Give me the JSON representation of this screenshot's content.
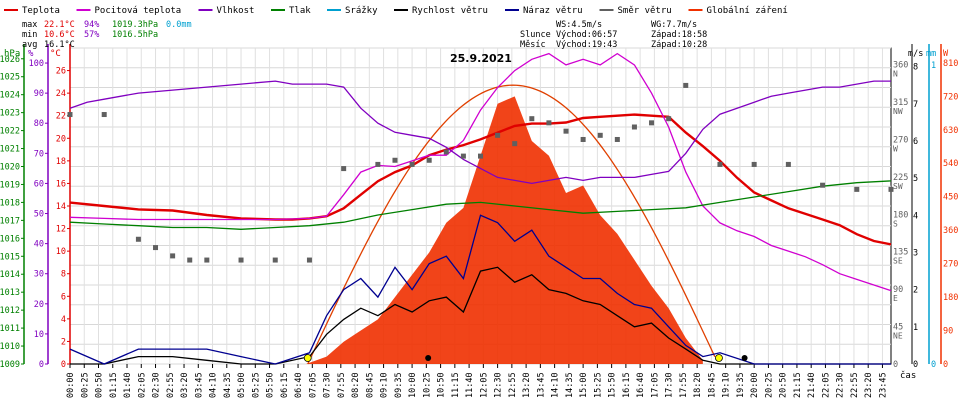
{
  "legend": [
    {
      "label": "Teplota",
      "color": "#e00000"
    },
    {
      "label": "Pocitová teplota",
      "color": "#d000d0"
    },
    {
      "label": "Vlhkost",
      "color": "#8000c0"
    },
    {
      "label": "Tlak",
      "color": "#008000"
    },
    {
      "label": "Srážky",
      "color": "#00a0d0"
    },
    {
      "label": "Rychlost větru",
      "color": "#000000"
    },
    {
      "label": "Náraz větru",
      "color": "#000090"
    },
    {
      "label": "Směr větru",
      "color": "#606060"
    },
    {
      "label": "Globální záření",
      "color": "#f03000"
    }
  ],
  "stats": {
    "max_label": "max",
    "max_temp": "22.1°C",
    "max_hum": "94%",
    "max_press": "1019.3hPa",
    "rain": "0.0mm",
    "min_label": "min",
    "min_temp": "10.6°C",
    "min_hum": "57%",
    "min_press": "1016.5hPa",
    "avg_label": "avg",
    "avg_temp": "16.1°C"
  },
  "wind_info": {
    "ws": "WS:4.5m/s",
    "wg": "WG:7.7m/s"
  },
  "sun_info": {
    "label": "Slunce",
    "rise": "Východ:06:57",
    "set": "Západ:18:58"
  },
  "moon_info": {
    "label": "Měsíc",
    "rise": "Východ:19:43",
    "set": "Západ:10:28"
  },
  "date": "25.9.2021",
  "xaxis_label": "čas",
  "axes": {
    "hpa": {
      "unit": "hPa",
      "ticks": [
        "1026",
        "1025",
        "1024",
        "1023",
        "1022",
        "1021",
        "1020",
        "1019",
        "1018",
        "1017",
        "1016",
        "1015",
        "1014",
        "1013",
        "1012",
        "1011",
        "1010",
        "1009"
      ],
      "color": "#008000"
    },
    "pct": {
      "unit": "%",
      "ticks": [
        "100",
        "90",
        "80",
        "70",
        "60",
        "50",
        "40",
        "30",
        "20",
        "10",
        "0"
      ],
      "color": "#8000c0"
    },
    "temp": {
      "unit": "°C",
      "ticks": [
        "26",
        "24",
        "22",
        "20",
        "18",
        "16",
        "14",
        "12",
        "10",
        "8",
        "6",
        "4",
        "2",
        "0"
      ],
      "color": "#e00000"
    },
    "dir": {
      "ticks": [
        "360",
        "315",
        "270",
        "225",
        "180",
        "135",
        "90",
        "45",
        "0"
      ],
      "labels": [
        "N",
        "NW",
        "W",
        "SW",
        "S",
        "SE",
        "E",
        "NE",
        ""
      ]
    },
    "ms": {
      "unit": "m/s",
      "ticks": [
        "8",
        "7",
        "6",
        "5",
        "4",
        "3",
        "2",
        "1",
        "0"
      ]
    },
    "mm": {
      "unit": "mm",
      "ticks": [
        "1",
        "0"
      ],
      "color": "#00a0d0"
    },
    "wm2": {
      "unit": "W",
      "ticks": [
        "810",
        "720",
        "630",
        "540",
        "450",
        "360",
        "270",
        "180",
        "90",
        "0"
      ],
      "color": "#f03000"
    }
  },
  "time_ticks": [
    "00:00",
    "00:25",
    "00:50",
    "01:15",
    "01:40",
    "02:05",
    "02:30",
    "02:55",
    "03:20",
    "03:45",
    "04:10",
    "04:35",
    "05:00",
    "05:25",
    "05:50",
    "06:15",
    "06:40",
    "07:05",
    "07:30",
    "07:55",
    "08:20",
    "08:45",
    "09:10",
    "09:35",
    "10:00",
    "10:25",
    "10:50",
    "11:15",
    "11:40",
    "12:05",
    "12:30",
    "12:55",
    "13:20",
    "13:45",
    "14:10",
    "14:35",
    "15:00",
    "15:25",
    "15:50",
    "16:15",
    "16:40",
    "17:05",
    "17:30",
    "17:55",
    "18:20",
    "18:45",
    "19:10",
    "19:35",
    "20:00",
    "20:25",
    "20:50",
    "21:15",
    "21:40",
    "22:05",
    "22:30",
    "22:55",
    "23:20",
    "23:45"
  ],
  "chart_data": {
    "type": "line",
    "x_unit": "hours",
    "series": [
      {
        "name": "Teplota",
        "axis": "temp",
        "color": "#e00000",
        "x": [
          0,
          1,
          2,
          3,
          4,
          5,
          6,
          6.5,
          7,
          7.5,
          8,
          8.5,
          9,
          9.5,
          10,
          10.5,
          11,
          11.5,
          12,
          12.5,
          13,
          13.5,
          14,
          14.5,
          15,
          15.5,
          16,
          16.5,
          17,
          17.5,
          18,
          18.5,
          19,
          19.5,
          20,
          20.5,
          21,
          21.5,
          22,
          22.5,
          23,
          23.5,
          24
        ],
        "y": [
          14.3,
          14,
          13.7,
          13.6,
          13.2,
          12.9,
          12.8,
          12.8,
          12.9,
          13.1,
          13.8,
          15,
          16.2,
          17,
          17.6,
          18.5,
          19,
          19.4,
          19.9,
          20.5,
          21.1,
          21.3,
          21.3,
          21.4,
          21.8,
          21.9,
          22,
          22.1,
          22,
          21.9,
          20.5,
          19.3,
          18,
          16.5,
          15.2,
          14.5,
          13.8,
          13.3,
          12.8,
          12.3,
          11.5,
          10.9,
          10.6
        ]
      },
      {
        "name": "Pocitová teplota",
        "axis": "temp",
        "color": "#d000d0",
        "x": [
          0,
          1,
          2,
          3,
          4,
          5,
          6,
          7,
          7.5,
          8,
          8.5,
          9,
          9.5,
          10,
          10.5,
          11,
          11.5,
          12,
          12.5,
          13,
          13.5,
          14,
          14.5,
          15,
          15.5,
          16,
          16.5,
          17,
          17.5,
          18,
          18.5,
          19,
          19.5,
          20,
          20.5,
          21,
          21.5,
          22,
          22.5,
          23,
          23.5,
          24
        ],
        "y": [
          13,
          12.9,
          12.8,
          12.8,
          12.8,
          12.8,
          12.8,
          12.9,
          13.1,
          15,
          17,
          17.6,
          17.5,
          18,
          18.5,
          18.5,
          19.8,
          22.5,
          24.5,
          26,
          27,
          27.5,
          26.5,
          27,
          26.5,
          27.5,
          26.5,
          24,
          21,
          17,
          14,
          12.5,
          11.8,
          11.3,
          10.5,
          10,
          9.5,
          8.8,
          8,
          7.5,
          7,
          6.5
        ]
      },
      {
        "name": "Vlhkost",
        "axis": "pct",
        "color": "#8000c0",
        "x": [
          0,
          0.5,
          1,
          2,
          3,
          4,
          5,
          6,
          6.5,
          7,
          7.5,
          8,
          8.5,
          9,
          9.5,
          10,
          10.5,
          11,
          11.5,
          12,
          12.5,
          13,
          13.5,
          14,
          14.5,
          15,
          15.5,
          16,
          16.5,
          17,
          17.5,
          18,
          18.5,
          19,
          19.5,
          20,
          20.5,
          21,
          21.5,
          22,
          22.5,
          23,
          23.5,
          24
        ],
        "y": [
          85,
          87,
          88,
          90,
          91,
          92,
          93,
          94,
          93,
          93,
          93,
          92,
          85,
          80,
          77,
          76,
          75,
          72,
          68,
          65,
          62,
          61,
          60,
          61,
          62,
          61,
          62,
          62,
          62,
          63,
          64,
          70,
          78,
          83,
          85,
          87,
          89,
          90,
          91,
          92,
          92,
          93,
          94,
          94
        ]
      },
      {
        "name": "Tlak",
        "axis": "hpa",
        "color": "#008000",
        "x": [
          0,
          1,
          2,
          3,
          4,
          5,
          6,
          7,
          8,
          9,
          10,
          11,
          12,
          13,
          14,
          15,
          16,
          17,
          18,
          19,
          20,
          21,
          22,
          23,
          24
        ],
        "y": [
          1016.9,
          1016.8,
          1016.7,
          1016.6,
          1016.6,
          1016.5,
          1016.6,
          1016.7,
          1016.9,
          1017.3,
          1017.6,
          1017.9,
          1018.0,
          1017.8,
          1017.6,
          1017.4,
          1017.5,
          1017.6,
          1017.7,
          1018.0,
          1018.3,
          1018.6,
          1018.9,
          1019.1,
          1019.2
        ]
      },
      {
        "name": "Rychlost větru",
        "axis": "ms",
        "color": "#000000",
        "x": [
          0,
          1,
          2,
          3,
          4,
          5,
          6,
          7,
          7.5,
          8,
          8.5,
          9,
          9.5,
          10,
          10.5,
          11,
          11.5,
          12,
          12.5,
          13,
          13.5,
          14,
          14.5,
          15,
          15.5,
          16,
          16.5,
          17,
          17.5,
          18,
          18.5,
          19,
          20,
          21,
          22,
          23,
          24
        ],
        "y": [
          0,
          0,
          0.2,
          0.2,
          0.1,
          0,
          0,
          0.2,
          0.8,
          1.2,
          1.5,
          1.3,
          1.6,
          1.4,
          1.7,
          1.8,
          1.4,
          2.5,
          2.6,
          2.2,
          2.4,
          2.0,
          1.9,
          1.7,
          1.6,
          1.3,
          1.0,
          1.1,
          0.7,
          0.4,
          0.1,
          0,
          0,
          0,
          0,
          0,
          0
        ]
      },
      {
        "name": "Náraz větru",
        "axis": "ms",
        "color": "#000090",
        "x": [
          0,
          1,
          2,
          3,
          4,
          5,
          6,
          7,
          7.5,
          8,
          8.5,
          9,
          9.5,
          10,
          10.5,
          11,
          11.5,
          12,
          12.5,
          13,
          13.5,
          14,
          14.5,
          15,
          15.5,
          16,
          16.5,
          17,
          17.5,
          18,
          18.5,
          19,
          20,
          21,
          22,
          23,
          24
        ],
        "y": [
          0.4,
          0,
          0.4,
          0.4,
          0.4,
          0.2,
          0,
          0.3,
          1.3,
          2.0,
          2.3,
          1.8,
          2.6,
          2.0,
          2.7,
          2.9,
          2.3,
          4.0,
          3.8,
          3.3,
          3.6,
          2.9,
          2.6,
          2.3,
          2.3,
          1.9,
          1.6,
          1.5,
          1.0,
          0.5,
          0.2,
          0.3,
          0,
          0,
          0,
          0,
          0
        ]
      },
      {
        "name": "Globální záření",
        "axis": "wm2",
        "color": "#f03000",
        "x": [
          6.9,
          7.5,
          8,
          8.5,
          9,
          9.5,
          10,
          10.5,
          11,
          11.5,
          12,
          12.5,
          13,
          13.5,
          14,
          14.5,
          15,
          15.5,
          16,
          16.5,
          17,
          17.5,
          18,
          18.5
        ],
        "y": [
          0,
          20,
          60,
          90,
          120,
          180,
          240,
          300,
          380,
          420,
          560,
          700,
          720,
          600,
          560,
          460,
          480,
          400,
          350,
          280,
          210,
          150,
          70,
          10
        ]
      },
      {
        "name": "Směr větru",
        "axis": "dir",
        "color": "#606060",
        "x": [
          0,
          1,
          2,
          2.5,
          3,
          3.5,
          4,
          5,
          6,
          7,
          8,
          9,
          9.5,
          10,
          10.5,
          11,
          11.5,
          12,
          12.5,
          13,
          13.5,
          14,
          14.5,
          15,
          15.5,
          16,
          16.5,
          17,
          17.5,
          18,
          19,
          20,
          21,
          22,
          23,
          24
        ],
        "y": [
          300,
          300,
          150,
          140,
          130,
          125,
          125,
          125,
          125,
          125,
          235,
          240,
          245,
          240,
          245,
          255,
          250,
          250,
          275,
          265,
          295,
          290,
          280,
          270,
          275,
          270,
          285,
          290,
          295,
          335,
          240,
          240,
          240,
          215,
          210,
          210
        ]
      }
    ],
    "ylim": {
      "temp": [
        0,
        28
      ],
      "pct": [
        0,
        105
      ],
      "hpa": [
        1009,
        1026.6
      ],
      "ms": [
        0,
        8.5
      ],
      "wm2": [
        0,
        850
      ],
      "dir": [
        0,
        380
      ]
    },
    "xlim": [
      0,
      24
    ]
  }
}
